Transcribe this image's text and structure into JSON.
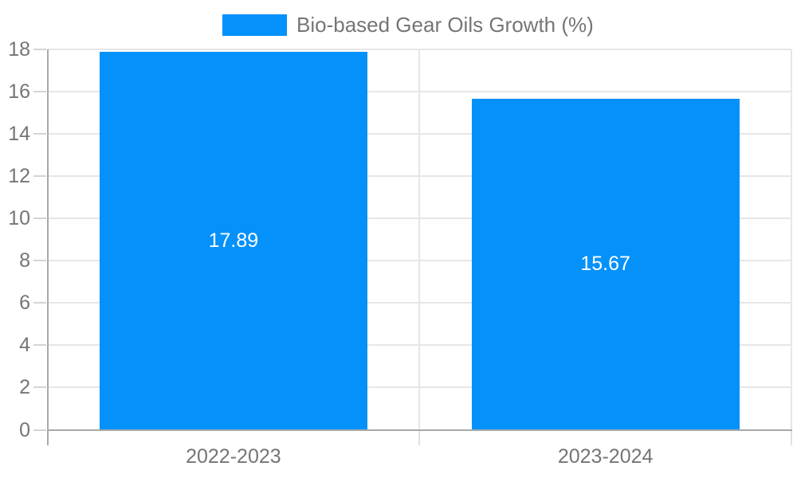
{
  "page": {
    "background_color": "#ffffff"
  },
  "legend": {
    "label": "Bio-based Gear Oils Growth (%)",
    "swatch_color": "#0491fa",
    "text_color": "#757575"
  },
  "chart_data": {
    "type": "bar",
    "title": "Bio-based Gear Oils Growth (%)",
    "categories": [
      "2022-2023",
      "2023-2024"
    ],
    "series": [
      {
        "name": "Bio-based Gear Oils Growth (%)",
        "values": [
          17.89,
          15.67
        ],
        "color": "#0491fa"
      }
    ],
    "value_labels": [
      "17.89",
      "15.67"
    ],
    "xlabel": "",
    "ylabel": "",
    "ylim": [
      0,
      18
    ],
    "yticks": [
      0,
      2,
      4,
      6,
      8,
      10,
      12,
      14,
      16,
      18
    ],
    "grid": true,
    "legend_position": "top-center",
    "colors": {
      "bar_fill": "#0491fa",
      "bar_label_text": "#ffffff",
      "axis_text": "#757575",
      "grid_line": "#e6e6e6",
      "axis_line": "#a9a9a9",
      "minor_tick": "#d4d4d4"
    }
  }
}
